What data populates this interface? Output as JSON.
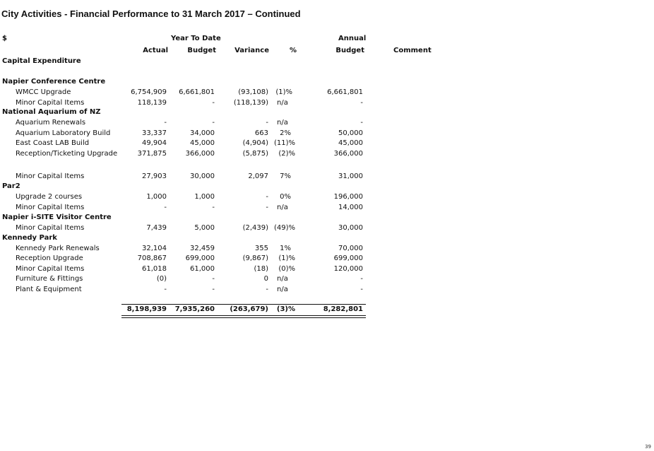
{
  "title": "City Activities - Financial Performance to 31 March 2017 – Continued",
  "headers": {
    "currency": "$",
    "ytd_group": "Year To Date",
    "annual_group": "Annual",
    "actual": "Actual",
    "budget": "Budget",
    "variance": "Variance",
    "pct": "%",
    "annual_budget": "Budget",
    "comment": "Comment"
  },
  "main_heading": "Capital Expenditure",
  "sections": {
    "conference": {
      "name": "Napier Conference Centre",
      "rows": [
        {
          "label": "WMCC Upgrade",
          "actual": "6,754,909",
          "budget": "6,661,801",
          "variance": "(93,108)",
          "pct": "(1)%",
          "annual": "6,661,801"
        },
        {
          "label": "Minor Capital Items",
          "actual": "118,139",
          "budget": "-",
          "variance": "(118,139)",
          "pct": "n/a",
          "annual": "-"
        }
      ]
    },
    "aquarium": {
      "name": "National Aquarium of NZ",
      "rows": [
        {
          "label": "Aquarium Renewals",
          "actual": "-",
          "budget": "-",
          "variance": "-",
          "pct": "n/a",
          "annual": "-"
        },
        {
          "label": "Aquarium Laboratory Build",
          "actual": "33,337",
          "budget": "34,000",
          "variance": "663",
          "pct": "2%",
          "annual": "50,000"
        },
        {
          "label": "East Coast LAB Build",
          "actual": "49,904",
          "budget": "45,000",
          "variance": "(4,904)",
          "pct": "(11)%",
          "annual": "45,000"
        },
        {
          "label": "Reception/Ticketing Upgrade",
          "actual": "371,875",
          "budget": "366,000",
          "variance": "(5,875)",
          "pct": "(2)%",
          "annual": "366,000"
        },
        {
          "label": "Minor Capital Items",
          "actual": "27,903",
          "budget": "30,000",
          "variance": "2,097",
          "pct": "7%",
          "annual": "31,000"
        }
      ]
    },
    "par2": {
      "name": "Par2",
      "rows": [
        {
          "label": "Upgrade 2 courses",
          "actual": "1,000",
          "budget": "1,000",
          "variance": "-",
          "pct": "0%",
          "annual": "196,000"
        },
        {
          "label": "Minor Capital Items",
          "actual": "-",
          "budget": "-",
          "variance": "-",
          "pct": "n/a",
          "annual": "14,000"
        }
      ]
    },
    "isite": {
      "name": "Napier i-SITE Visitor Centre",
      "rows": [
        {
          "label": "Minor Capital Items",
          "actual": "7,439",
          "budget": "5,000",
          "variance": "(2,439)",
          "pct": "(49)%",
          "annual": "30,000"
        }
      ]
    },
    "kennedy": {
      "name": "Kennedy Park",
      "rows": [
        {
          "label": "Kennedy Park Renewals",
          "actual": "32,104",
          "budget": "32,459",
          "variance": "355",
          "pct": "1%",
          "annual": "70,000"
        },
        {
          "label": "Reception Upgrade",
          "actual": "708,867",
          "budget": "699,000",
          "variance": "(9,867)",
          "pct": "(1)%",
          "annual": "699,000"
        },
        {
          "label": "Minor Capital Items",
          "actual": "61,018",
          "budget": "61,000",
          "variance": "(18)",
          "pct": "(0)%",
          "annual": "120,000"
        },
        {
          "label": "Furniture & Fittings",
          "actual": "(0)",
          "budget": "-",
          "variance": "0",
          "pct": "n/a",
          "annual": "-"
        },
        {
          "label": "Plant & Equipment",
          "actual": "-",
          "budget": "-",
          "variance": "-",
          "pct": "n/a",
          "annual": "-"
        }
      ]
    }
  },
  "total": {
    "actual": "8,198,939",
    "budget": "7,935,260",
    "variance": "(263,679)",
    "pct": "(3)%",
    "annual": "8,282,801"
  },
  "page_number": "39"
}
